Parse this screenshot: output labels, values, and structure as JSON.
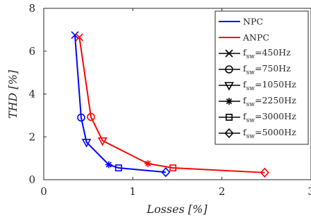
{
  "chart_data": {
    "type": "line",
    "xlabel": "Losses [%]",
    "ylabel": "THD [%]",
    "xlim": [
      0,
      3
    ],
    "ylim": [
      0,
      8
    ],
    "xticks": [
      "0",
      "1",
      "2",
      "3"
    ],
    "yticks": [
      "0",
      "2",
      "4",
      "6",
      "8"
    ],
    "grid": false,
    "legend_position": "top-right",
    "series": [
      {
        "name": "NPC",
        "color": "#0000ff",
        "points": [
          {
            "x": 0.35,
            "y": 6.75,
            "marker": "x"
          },
          {
            "x": 0.42,
            "y": 2.9,
            "marker": "circle"
          },
          {
            "x": 0.48,
            "y": 1.75,
            "marker": "triangle-down"
          },
          {
            "x": 0.73,
            "y": 0.7,
            "marker": "star"
          },
          {
            "x": 0.84,
            "y": 0.55,
            "marker": "square"
          },
          {
            "x": 1.37,
            "y": 0.35,
            "marker": "diamond"
          }
        ]
      },
      {
        "name": "ANPC",
        "color": "#ff0000",
        "points": [
          {
            "x": 0.4,
            "y": 6.65,
            "marker": "x"
          },
          {
            "x": 0.53,
            "y": 2.93,
            "marker": "circle"
          },
          {
            "x": 0.66,
            "y": 1.82,
            "marker": "triangle-down"
          },
          {
            "x": 1.17,
            "y": 0.75,
            "marker": "star"
          },
          {
            "x": 1.45,
            "y": 0.55,
            "marker": "square"
          },
          {
            "x": 2.48,
            "y": 0.33,
            "marker": "diamond"
          }
        ]
      }
    ],
    "marker_legend": [
      {
        "marker": "x",
        "label_main": "f",
        "label_sub": "sw",
        "label_rest": "=450Hz"
      },
      {
        "marker": "circle",
        "label_main": "f",
        "label_sub": "sw",
        "label_rest": "=750Hz"
      },
      {
        "marker": "triangle-down",
        "label_main": "f",
        "label_sub": "sw",
        "label_rest": "=1050Hz"
      },
      {
        "marker": "star",
        "label_main": "f",
        "label_sub": "sw",
        "label_rest": "=2250Hz"
      },
      {
        "marker": "square",
        "label_main": "f",
        "label_sub": "sw",
        "label_rest": "=3000Hz"
      },
      {
        "marker": "diamond",
        "label_main": "f",
        "label_sub": "sw",
        "label_rest": "=5000Hz"
      }
    ]
  }
}
